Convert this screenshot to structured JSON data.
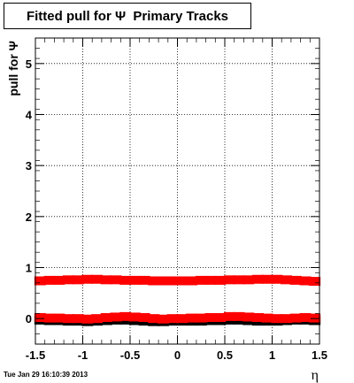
{
  "chart_data": {
    "type": "scatter",
    "title": "Fitted pull for Ψ  Primary Tracks",
    "xlabel": "η",
    "ylabel": "pull for Ψ",
    "xlim": [
      -1.5,
      1.5
    ],
    "ylim": [
      -0.5,
      5.5
    ],
    "x_ticks": [
      "-1.5",
      "-1",
      "-0.5",
      "0",
      "0.5",
      "1",
      "1.5"
    ],
    "y_ticks": [
      "0",
      "1",
      "2",
      "3",
      "4",
      "5"
    ],
    "grid": true,
    "series": [
      {
        "color": "#ff0000",
        "x": [
          -1.45,
          -1.35,
          -1.25,
          -1.15,
          -1.05,
          -0.95,
          -0.85,
          -0.75,
          -0.65,
          -0.55,
          -0.45,
          -0.35,
          -0.25,
          -0.15,
          -0.05,
          0.05,
          0.15,
          0.25,
          0.35,
          0.45,
          0.55,
          0.65,
          0.75,
          0.85,
          0.95,
          1.05,
          1.15,
          1.25,
          1.35,
          1.45
        ],
        "y": [
          0.74,
          0.75,
          0.75,
          0.76,
          0.76,
          0.77,
          0.77,
          0.76,
          0.76,
          0.75,
          0.75,
          0.75,
          0.74,
          0.74,
          0.74,
          0.74,
          0.74,
          0.75,
          0.75,
          0.75,
          0.76,
          0.76,
          0.76,
          0.77,
          0.77,
          0.77,
          0.76,
          0.75,
          0.74,
          0.73
        ]
      },
      {
        "color": "#ff0000",
        "x": [
          -1.45,
          -1.35,
          -1.25,
          -1.15,
          -1.05,
          -0.95,
          -0.85,
          -0.75,
          -0.65,
          -0.55,
          -0.45,
          -0.35,
          -0.25,
          -0.15,
          -0.05,
          0.05,
          0.15,
          0.25,
          0.35,
          0.45,
          0.55,
          0.65,
          0.75,
          0.85,
          0.95,
          1.05,
          1.15,
          1.25,
          1.35,
          1.45
        ],
        "y": [
          0.02,
          0.01,
          0.01,
          0.0,
          0.0,
          -0.01,
          0.0,
          0.02,
          0.03,
          0.04,
          0.03,
          0.02,
          0.0,
          -0.01,
          0.0,
          0.0,
          0.01,
          0.01,
          0.02,
          0.02,
          0.04,
          0.04,
          0.03,
          0.02,
          0.01,
          0.0,
          0.0,
          0.01,
          0.02,
          0.01
        ]
      },
      {
        "color": "#000000",
        "x": [
          -1.45,
          -1.35,
          -1.25,
          -1.15,
          -1.05,
          -0.95,
          -0.85,
          -0.75,
          -0.65,
          -0.55,
          -0.45,
          -0.35,
          -0.25,
          -0.15,
          -0.05,
          0.05,
          0.15,
          0.25,
          0.35,
          0.45,
          0.55,
          0.65,
          0.75,
          0.85,
          0.95,
          1.05,
          1.15,
          1.25,
          1.35,
          1.45
        ],
        "y": [
          -0.03,
          -0.04,
          -0.04,
          -0.05,
          -0.05,
          -0.06,
          -0.05,
          -0.04,
          -0.03,
          -0.03,
          -0.04,
          -0.05,
          -0.06,
          -0.06,
          -0.05,
          -0.05,
          -0.05,
          -0.05,
          -0.04,
          -0.04,
          -0.03,
          -0.03,
          -0.04,
          -0.05,
          -0.05,
          -0.05,
          -0.04,
          -0.03,
          -0.03,
          -0.04
        ]
      }
    ]
  },
  "footer": {
    "timestamp": "Tue Jan 29 16:10:39 2013"
  }
}
